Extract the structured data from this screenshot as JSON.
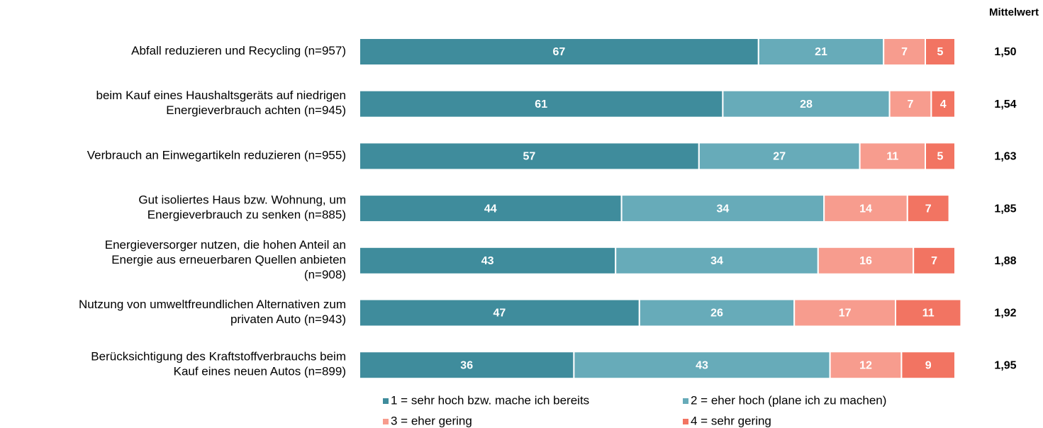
{
  "chart_data": {
    "type": "stacked-bar",
    "orientation": "horizontal",
    "categories": [
      "Abfall reduzieren und Recycling (n=957)",
      "beim Kauf eines Haushaltsgeräts auf niedrigen\nEnergieverbrauch achten (n=945)",
      "Verbrauch an Einwegartikeln reduzieren (n=955)",
      "Gut isoliertes Haus bzw. Wohnung, um\nEnergieverbrauch zu senken (n=885)",
      "Energieversorger nutzen, die hohen Anteil an\nEnergie aus erneuerbaren Quellen anbieten\n(n=908)",
      "Nutzung von umweltfreundlichen Alternativen zum\nprivaten Auto (n=943)",
      "Berücksichtigung des Kraftstoffverbrauchs beim\nKauf eines neuen Autos (n=899)"
    ],
    "series": [
      {
        "name": "1 = sehr hoch bzw. mache ich bereits",
        "color": "#3f8c9c",
        "values": [
          67,
          61,
          57,
          44,
          43,
          47,
          36
        ]
      },
      {
        "name": "2 = eher hoch (plane ich zu machen)",
        "color": "#67abb9",
        "values": [
          21,
          28,
          27,
          34,
          34,
          26,
          43
        ]
      },
      {
        "name": "3 = eher gering",
        "color": "#f79c8e",
        "values": [
          7,
          7,
          11,
          14,
          16,
          17,
          12
        ]
      },
      {
        "name": "4 = sehr gering",
        "color": "#f27462",
        "values": [
          5,
          4,
          5,
          7,
          7,
          11,
          9
        ]
      }
    ],
    "xlim": [
      0,
      100
    ],
    "mean_title": "Mittelwert",
    "means": [
      1.5,
      1.54,
      1.63,
      1.85,
      1.88,
      1.92,
      1.95
    ],
    "mean_labels": [
      "1,50",
      "1,54",
      "1,63",
      "1,85",
      "1,88",
      "1,92",
      "1,95"
    ]
  }
}
